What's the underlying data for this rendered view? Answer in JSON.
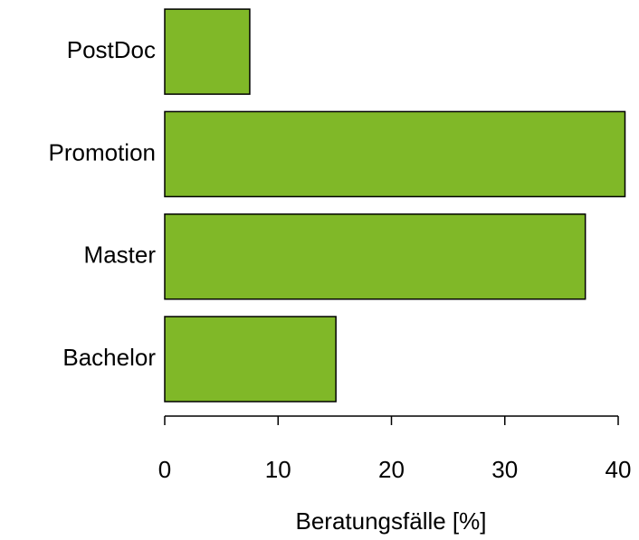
{
  "chart_data": {
    "type": "bar",
    "orientation": "horizontal",
    "categories": [
      "Bachelor",
      "Master",
      "Promotion",
      "PostDoc"
    ],
    "values": [
      15.1,
      37.1,
      40.6,
      7.5
    ],
    "color": "#80b828",
    "xlabel": "Beratungsfälle [%]",
    "xlim": [
      0,
      40
    ],
    "xticks": [
      0,
      10,
      20,
      30,
      40
    ],
    "grid": false
  }
}
